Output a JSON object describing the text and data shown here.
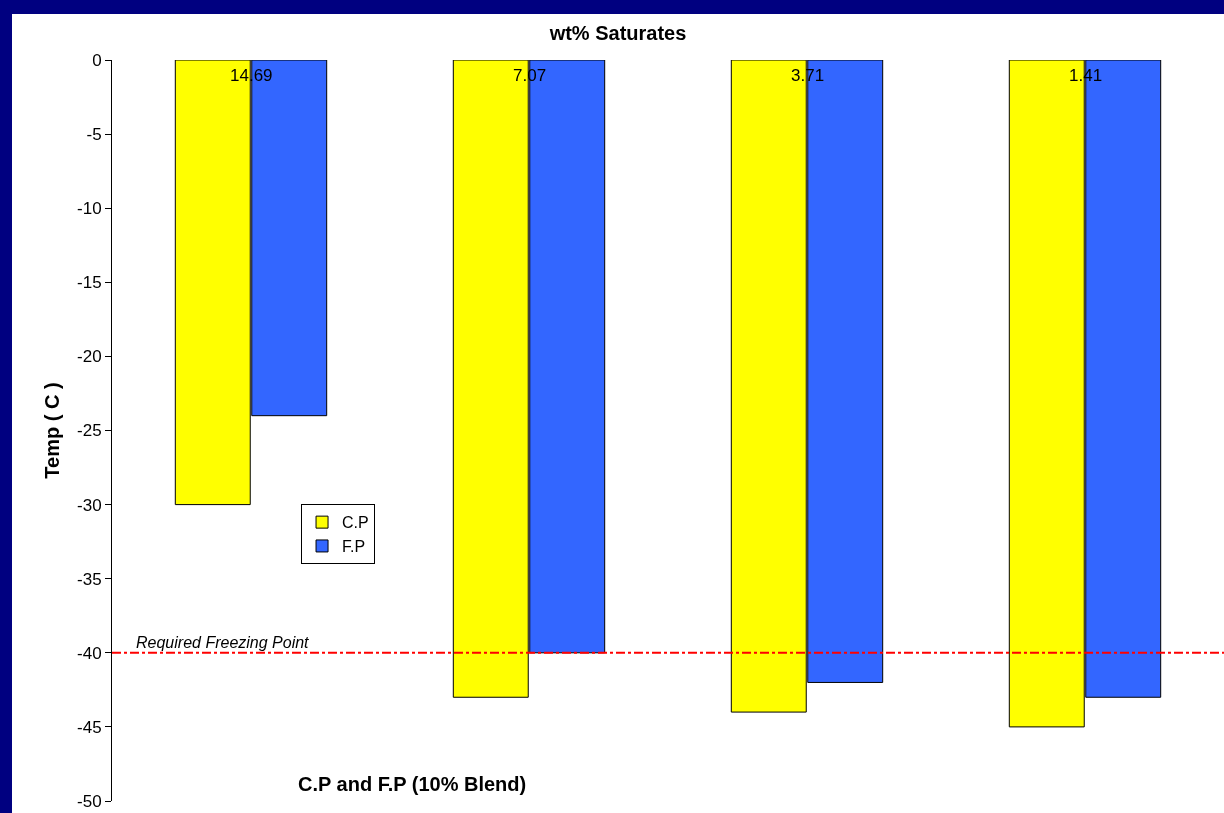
{
  "chart_data": {
    "type": "bar",
    "title": "wt% Saturates",
    "xlabel": "C.P and F.P (10% Blend)",
    "ylabel": "Temp ( C )",
    "categories": [
      "14.69",
      "7.07",
      "3.71",
      "1.41"
    ],
    "series": [
      {
        "name": "C.P",
        "color": "#ffff00",
        "values": [
          -30,
          -43,
          -44,
          -45
        ]
      },
      {
        "name": "F.P",
        "color": "#3366ff",
        "values": [
          -24,
          -40,
          -42,
          -43
        ]
      }
    ],
    "ylim": [
      -50,
      0
    ],
    "yticks": [
      -50,
      -45,
      -40,
      -35,
      -30,
      -25,
      -20,
      -15,
      -10,
      -5,
      0
    ],
    "ref_lines": [
      {
        "axis": "y",
        "value": -40,
        "label": "Required Freezing Point",
        "color": "#ff0000",
        "line_style": "dashdot"
      }
    ],
    "grid": false,
    "legend": "left"
  }
}
